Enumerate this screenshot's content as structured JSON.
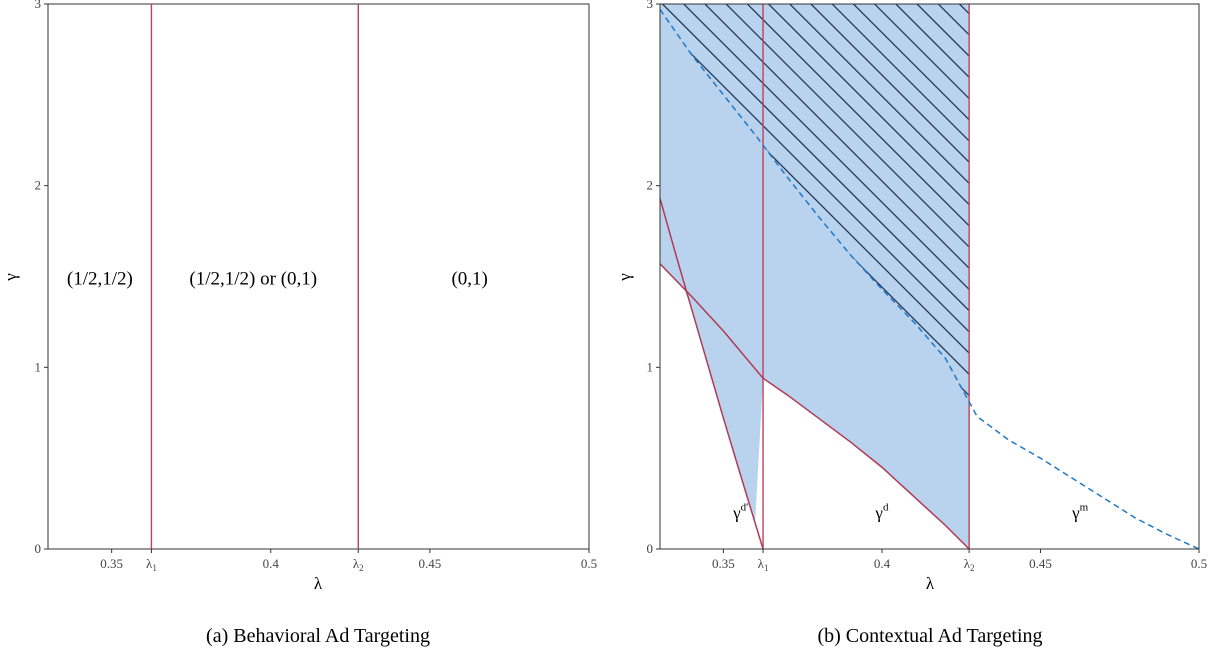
{
  "chart_data": [
    {
      "type": "line",
      "panel": "a",
      "caption": "(a) Behavioral Ad Targeting",
      "xlabel": "λ",
      "ylabel": "γ",
      "xlim": [
        0.33,
        0.5
      ],
      "ylim": [
        0,
        3
      ],
      "x_ticks": [
        {
          "value": 0.35,
          "label": "0.35"
        },
        {
          "value": 0.3625,
          "label": "λ",
          "sub": "1"
        },
        {
          "value": 0.4,
          "label": "0.4"
        },
        {
          "value": 0.4275,
          "label": "λ",
          "sub": "2"
        },
        {
          "value": 0.45,
          "label": "0.45"
        },
        {
          "value": 0.5,
          "label": "0.5"
        }
      ],
      "y_ticks": [
        {
          "value": 0,
          "label": "0"
        },
        {
          "value": 1,
          "label": "1"
        },
        {
          "value": 2,
          "label": "2"
        },
        {
          "value": 3,
          "label": "3"
        }
      ],
      "vertical_lines": [
        0.3625,
        0.4275
      ],
      "region_labels": [
        {
          "text": "(1/2,1/2)",
          "x": 0.3463,
          "y": 1.49
        },
        {
          "text": "(1/2,1/2) or (0,1)",
          "x": 0.3945,
          "y": 1.49
        },
        {
          "text": "(0,1)",
          "x": 0.4625,
          "y": 1.49
        }
      ],
      "grid": false,
      "colors": {
        "vline": "#c0405a",
        "axis": "#333333"
      }
    },
    {
      "type": "area",
      "panel": "b",
      "caption": "(b) Contextual Ad Targeting",
      "xlabel": "λ",
      "ylabel": "γ",
      "xlim": [
        0.33,
        0.5
      ],
      "ylim": [
        0,
        3
      ],
      "x_ticks": [
        {
          "value": 0.35,
          "label": "0.35"
        },
        {
          "value": 0.3625,
          "label": "λ",
          "sub": "1"
        },
        {
          "value": 0.4,
          "label": "0.4"
        },
        {
          "value": 0.4275,
          "label": "λ",
          "sub": "2"
        },
        {
          "value": 0.45,
          "label": "0.45"
        },
        {
          "value": 0.5,
          "label": "0.5"
        }
      ],
      "y_ticks": [
        {
          "value": 0,
          "label": "0"
        },
        {
          "value": 1,
          "label": "1"
        },
        {
          "value": 2,
          "label": "2"
        },
        {
          "value": 3,
          "label": "3"
        }
      ],
      "vertical_lines": [
        0.3625,
        0.4275
      ],
      "series": [
        {
          "name": "γ^d′",
          "style": "solid",
          "x": [
            0.33,
            0.335,
            0.34,
            0.345,
            0.35,
            0.355,
            0.3625
          ],
          "y": [
            1.93,
            1.62,
            1.32,
            1.02,
            0.72,
            0.43,
            0.0
          ]
        },
        {
          "name": "γ^d",
          "style": "solid",
          "x": [
            0.33,
            0.34,
            0.35,
            0.3625,
            0.37,
            0.38,
            0.39,
            0.4,
            0.41,
            0.42,
            0.4275
          ],
          "y": [
            1.57,
            1.39,
            1.2,
            0.94,
            0.85,
            0.72,
            0.59,
            0.45,
            0.29,
            0.13,
            0.0
          ]
        },
        {
          "name": "γ^m",
          "style": "dashed",
          "x": [
            0.33,
            0.34,
            0.35,
            0.36,
            0.37,
            0.38,
            0.39,
            0.4,
            0.41,
            0.42,
            0.43,
            0.44,
            0.45,
            0.46,
            0.47,
            0.48,
            0.49,
            0.5
          ],
          "y": [
            2.97,
            2.72,
            2.5,
            2.28,
            2.05,
            1.83,
            1.62,
            1.43,
            1.25,
            1.05,
            0.73,
            0.6,
            0.5,
            0.39,
            0.28,
            0.17,
            0.08,
            0.0
          ]
        }
      ],
      "curve_labels": [
        {
          "text": "γ",
          "sup": "d′",
          "x": 0.3555,
          "y": 0.2
        },
        {
          "text": "γ",
          "sup": "d",
          "x": 0.4,
          "y": 0.2
        },
        {
          "text": "γ",
          "sup": "m",
          "x": 0.4625,
          "y": 0.2
        }
      ],
      "grid": false,
      "colors": {
        "fill": "#b9d3ee",
        "hatch": "#1a2a48",
        "vline": "#c0405a",
        "curve": "#b03a55",
        "dashed": "#1f78c8",
        "axis": "#333333"
      }
    }
  ]
}
